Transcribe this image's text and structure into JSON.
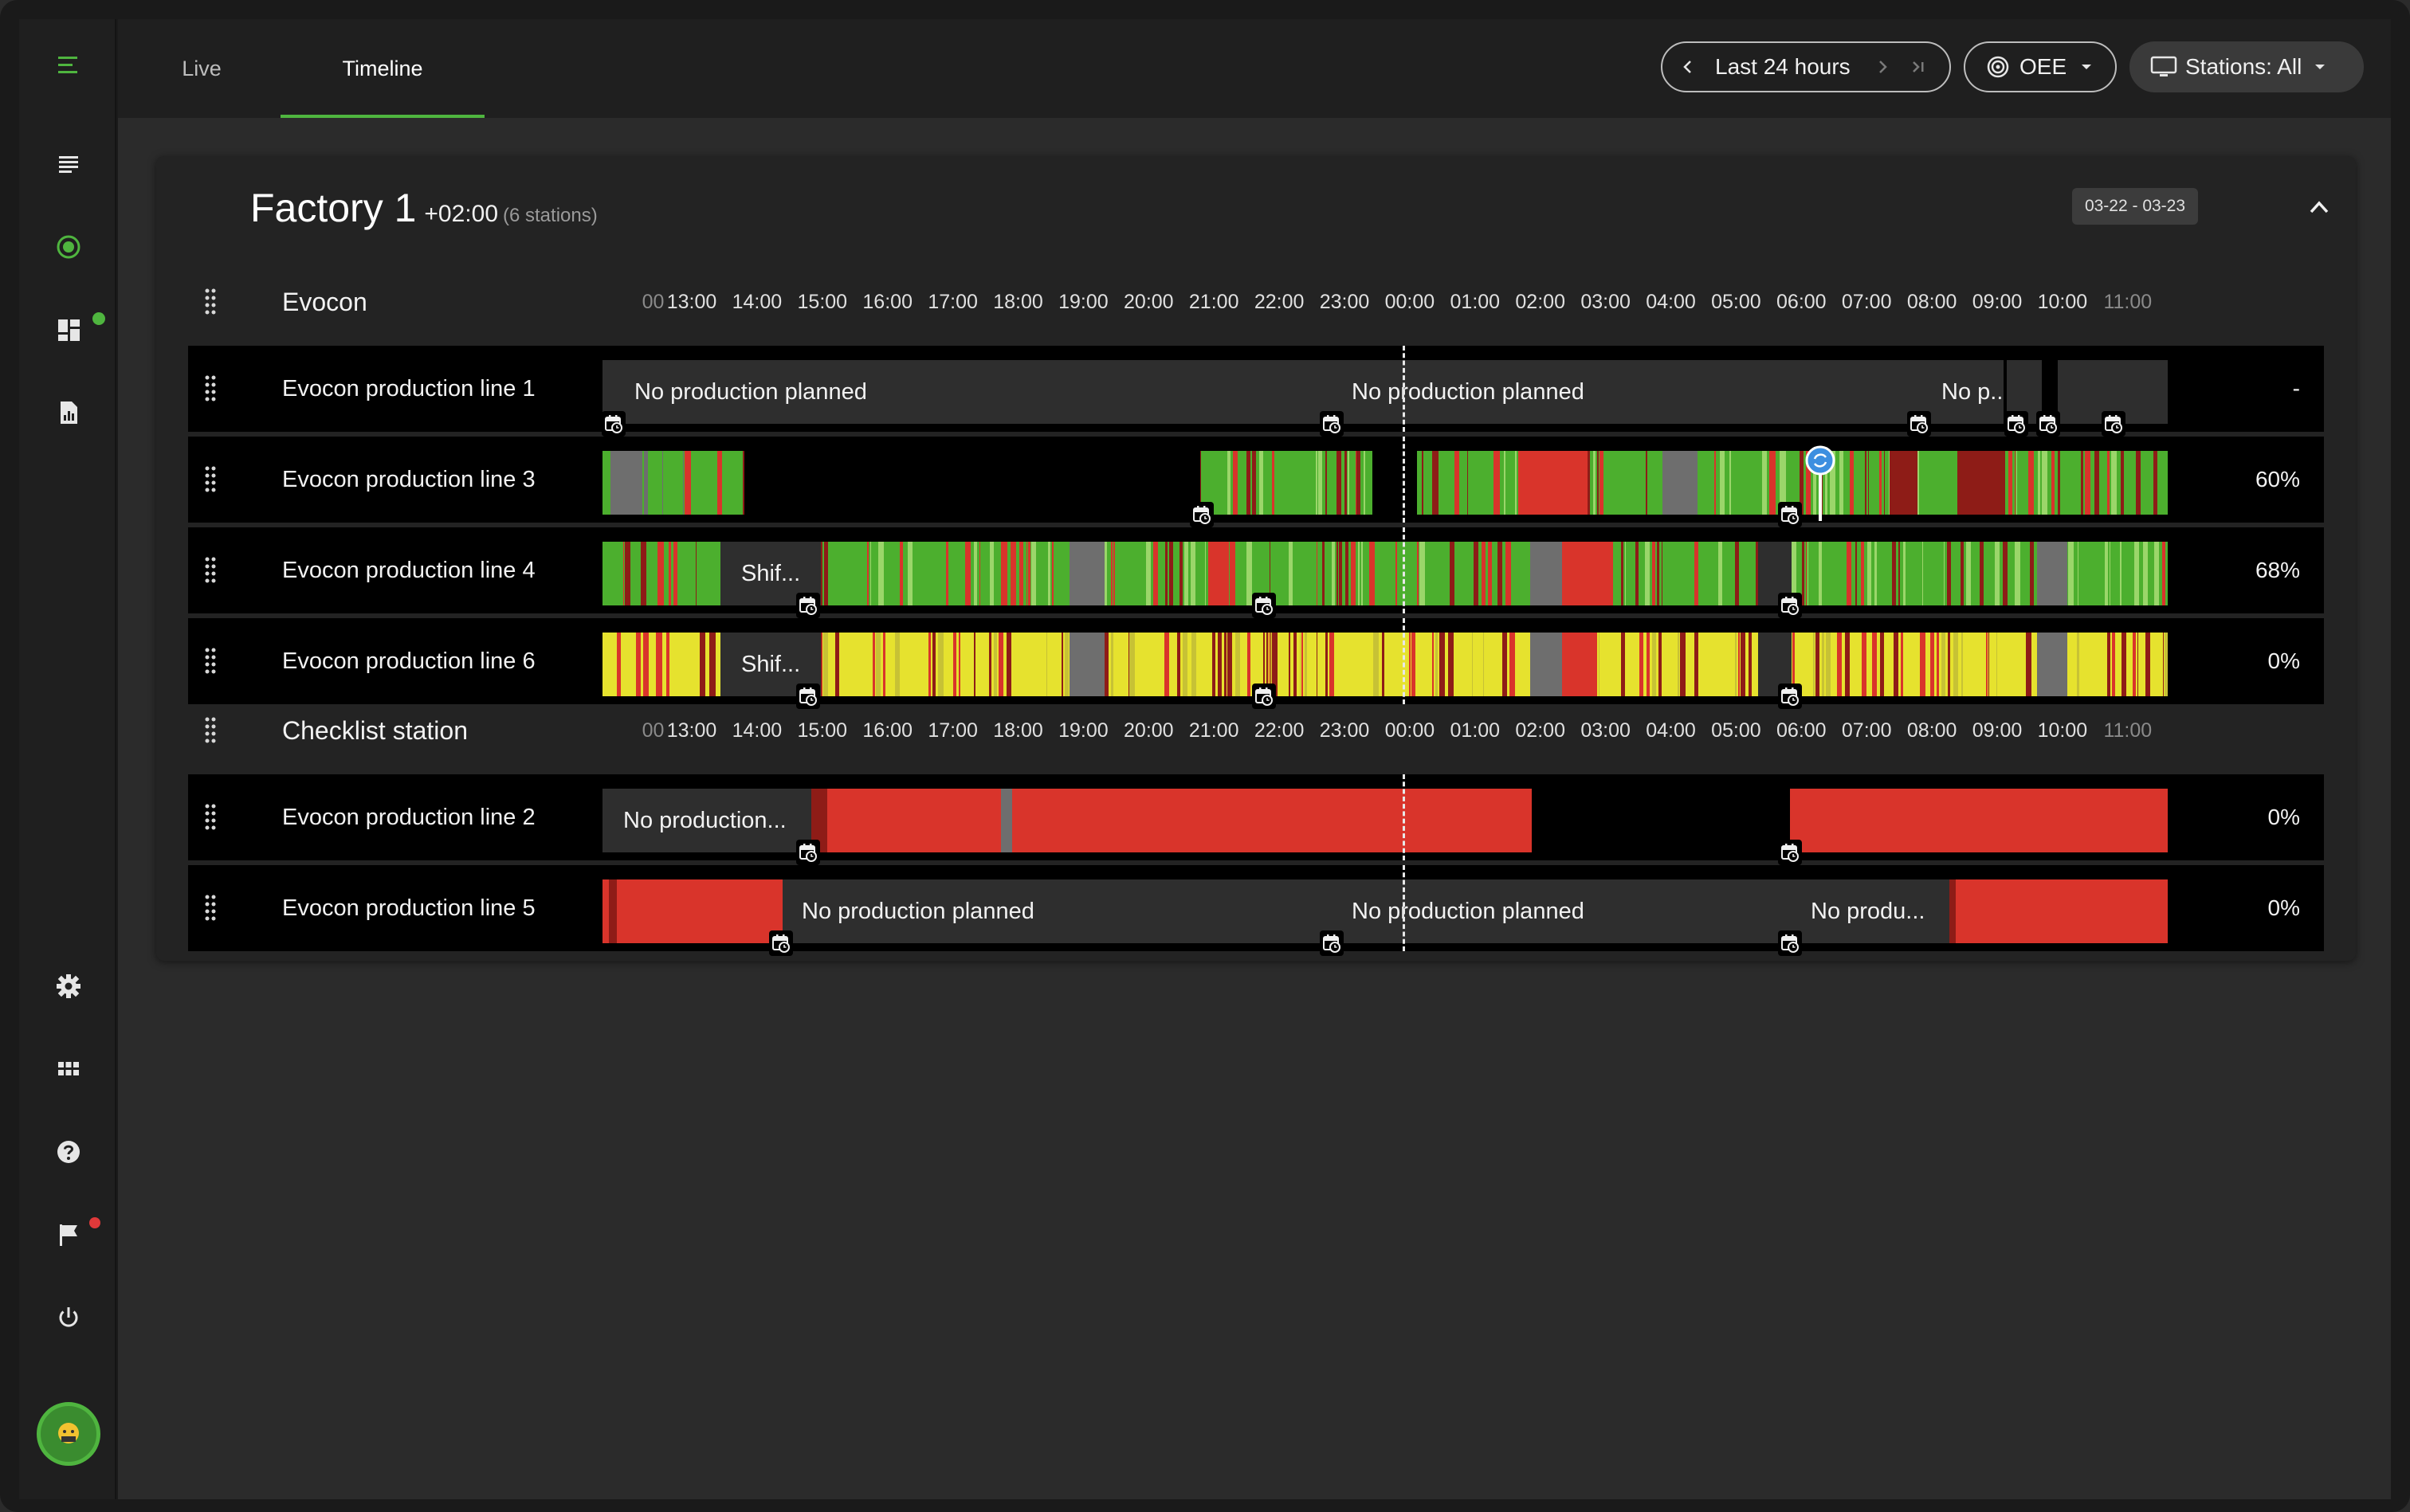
{
  "topbar": {
    "tabs": [
      {
        "label": "Live"
      },
      {
        "label": "Timeline"
      }
    ],
    "period": {
      "label": "Last 24 hours"
    },
    "metric": {
      "label": "OEE"
    },
    "stations": {
      "label": "Stations: All"
    }
  },
  "factory": {
    "name": "Factory 1",
    "timezone": "+02:00",
    "station_count": "(6 stations)",
    "date_range": "03-22 - 03-23"
  },
  "time_ticks": [
    ":00",
    "13:00",
    "14:00",
    "15:00",
    "16:00",
    "17:00",
    "18:00",
    "19:00",
    "20:00",
    "21:00",
    "22:00",
    "23:00",
    "00:00",
    "01:00",
    "02:00",
    "03:00",
    "04:00",
    "05:00",
    "06:00",
    "07:00",
    "08:00",
    "09:00",
    "10:00",
    "11:00"
  ],
  "groups": [
    {
      "name": "Evocon",
      "rows": [
        {
          "name": "Evocon production line 1",
          "value": "-",
          "labels": [
            "No production planned",
            "No production planned",
            "No p..."
          ]
        },
        {
          "name": "Evocon production line 3",
          "value": "60%",
          "labels": []
        },
        {
          "name": "Evocon production line 4",
          "value": "68%",
          "labels": [
            "Shif..."
          ]
        },
        {
          "name": "Evocon production line 6",
          "value": "0%",
          "labels": [
            "Shif..."
          ]
        }
      ]
    },
    {
      "name": "Checklist station",
      "rows": [
        {
          "name": "Evocon production line 2",
          "value": "0%",
          "labels": [
            "No production..."
          ]
        },
        {
          "name": "Evocon production line 5",
          "value": "0%",
          "labels": [
            "No production planned",
            "No production planned",
            "No produ..."
          ]
        }
      ]
    }
  ],
  "colors": {
    "running": "#4caf2e",
    "stopped": "#d9342b",
    "short_stop": "#8e1c17",
    "no_production": "#2e2e2e",
    "unknown": "#6e6e6e",
    "zero_speed": "#e6e22e",
    "accent": "#4fb53f"
  },
  "icons": {
    "menu": "menu-icon",
    "list": "list-icon",
    "live": "radar-icon",
    "dashboard": "dashboard-icon",
    "report": "report-icon",
    "settings": "gear-icon",
    "apps": "apps-icon",
    "help": "help-icon",
    "flag": "flag-icon",
    "power": "power-icon",
    "calendar": "calendar-icon",
    "target": "target-icon",
    "monitor": "monitor-icon"
  }
}
